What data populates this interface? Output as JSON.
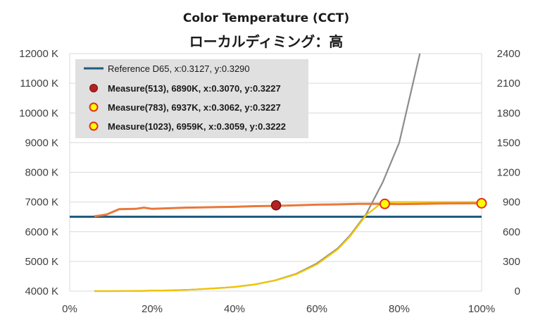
{
  "chart_data": {
    "type": "line",
    "title": "Color Temperature (CCT)",
    "subtitle": "ローカルディミング：高",
    "x_ticks": [
      "0%",
      "20%",
      "40%",
      "60%",
      "80%",
      "100%"
    ],
    "xlim": [
      0,
      100
    ],
    "ylim_left": [
      4000,
      12000
    ],
    "ylim_right": [
      0,
      2400
    ],
    "y_left_ticks": [
      "4000 K",
      "5000 K",
      "6000 K",
      "7000 K",
      "8000 K",
      "9000 K",
      "10000 K",
      "11000 K",
      "12000 K"
    ],
    "y_right_ticks": [
      "0",
      "300",
      "600",
      "900",
      "1200",
      "1500",
      "1800",
      "2100",
      "2400"
    ],
    "grid": "horizontal",
    "legend_position": "top-left",
    "colors": {
      "reference": "#1f5c80",
      "cct_line": "#e8793a",
      "gray_line": "#8c8c8c",
      "yellow_line": "#f2c500",
      "marker_513": "#b22222",
      "marker_yellow": "#ffff00",
      "marker_edge": "#e03020",
      "grid": "#d9d9d9",
      "legend_bg": "#e0e0e0"
    },
    "reference": {
      "name": "Reference D65, x:0.3127, y:0.3290",
      "value": 6504
    },
    "cct_series": {
      "x": [
        6,
        9,
        12,
        16,
        18,
        20,
        24,
        28,
        32,
        36,
        40,
        45,
        50,
        55,
        60,
        65,
        70,
        76,
        80,
        85,
        90,
        95,
        100
      ],
      "values": [
        6520,
        6580,
        6760,
        6770,
        6810,
        6770,
        6790,
        6810,
        6820,
        6830,
        6840,
        6860,
        6870,
        6890,
        6910,
        6920,
        6940,
        6937,
        6930,
        6940,
        6950,
        6955,
        6959
      ]
    },
    "luminance_gray": {
      "x": [
        6,
        10,
        15,
        20,
        25,
        30,
        35,
        40,
        45,
        50,
        55,
        60,
        65,
        68,
        72,
        76,
        80,
        85
      ],
      "values": [
        0,
        0,
        1,
        4,
        8,
        16,
        28,
        42,
        68,
        110,
        175,
        280,
        430,
        560,
        780,
        1100,
        1500,
        2400
      ]
    },
    "luminance_yellow": {
      "x": [
        6,
        10,
        15,
        20,
        25,
        30,
        35,
        40,
        45,
        50,
        55,
        60,
        65,
        68,
        72,
        76,
        80,
        85,
        90,
        95,
        100
      ],
      "values": [
        0,
        0,
        1,
        4,
        8,
        16,
        28,
        42,
        68,
        108,
        170,
        270,
        420,
        550,
        770,
        900,
        900,
        900,
        900,
        900,
        900
      ]
    },
    "measures": [
      {
        "name": "Measure(513), 6890K, x:0.3070, y:0.3227",
        "x": 50.1,
        "value": 6890,
        "style": "red"
      },
      {
        "name": "Measure(783), 6937K, x:0.3062, y:0.3227",
        "x": 76.5,
        "value": 6937,
        "style": "yellow"
      },
      {
        "name": "Measure(1023), 6959K, x:0.3059, y:0.3222",
        "x": 100,
        "value": 6959,
        "style": "yellow"
      }
    ]
  }
}
